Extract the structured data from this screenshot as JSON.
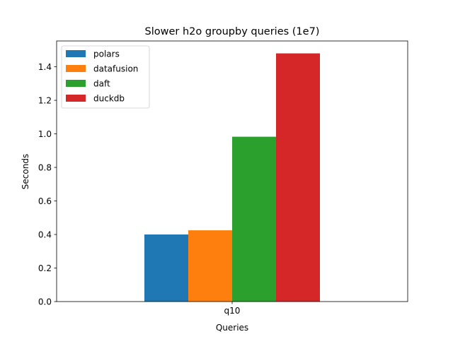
{
  "chart_data": {
    "type": "bar",
    "title": "Slower h2o groupby queries (1e7)",
    "xlabel": "Queries",
    "ylabel": "Seconds",
    "categories": [
      "q10"
    ],
    "series": [
      {
        "name": "polars",
        "values": [
          0.4
        ],
        "color": "#1f77b4"
      },
      {
        "name": "datafusion",
        "values": [
          0.425
        ],
        "color": "#ff7f0e"
      },
      {
        "name": "daft",
        "values": [
          0.983
        ],
        "color": "#2ca02c"
      },
      {
        "name": "duckdb",
        "values": [
          1.48
        ],
        "color": "#d62728"
      }
    ],
    "ylim": [
      0,
      1.554
    ],
    "yticks": [
      "0.0",
      "0.2",
      "0.4",
      "0.6",
      "0.8",
      "1.0",
      "1.2",
      "1.4"
    ],
    "grid": false,
    "legend_position": "top-left"
  }
}
